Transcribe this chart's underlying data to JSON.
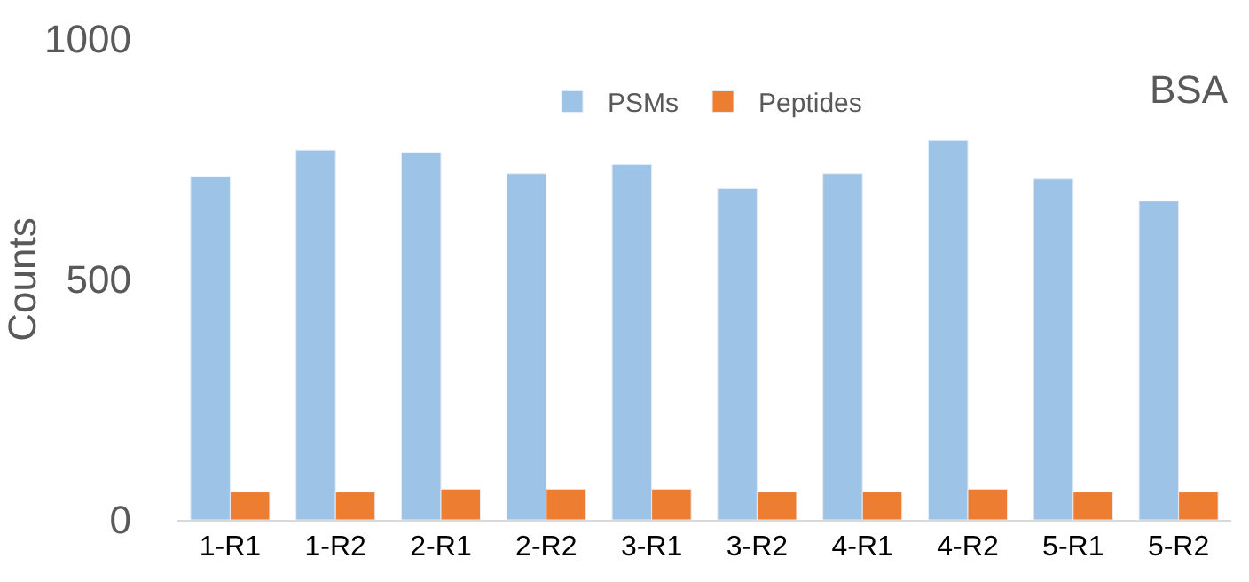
{
  "chart_data": {
    "type": "bar",
    "ylabel": "Counts",
    "annotations": [
      "BSA"
    ],
    "categories": [
      "1-R1",
      "1-R2",
      "2-R1",
      "2-R2",
      "3-R1",
      "3-R2",
      "4-R1",
      "4-R2",
      "5-R1",
      "5-R2"
    ],
    "series": [
      {
        "name": "PSMs",
        "color": "#9dc3e6",
        "values": [
          714,
          769,
          764,
          720,
          739,
          689,
          720,
          789,
          709,
          663
        ]
      },
      {
        "name": "Peptides",
        "color": "#ed7d31",
        "values": [
          58,
          58,
          64,
          64,
          64,
          58,
          58,
          64,
          58,
          58
        ]
      }
    ],
    "ylim": [
      0,
      1000
    ],
    "yticks": [
      0,
      500,
      1000
    ],
    "legend": "top"
  }
}
